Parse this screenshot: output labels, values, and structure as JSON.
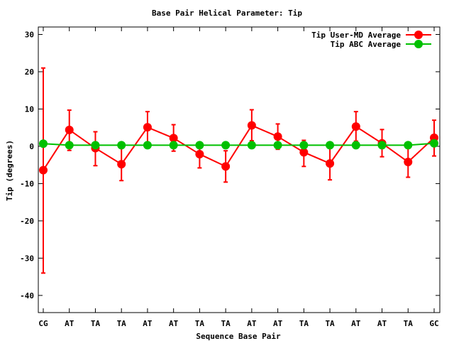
{
  "chart_data": {
    "type": "line",
    "title": "Base Pair Helical Parameter: Tip",
    "xlabel": "Sequence Base Pair",
    "ylabel": "Tip (degrees)",
    "ylim": [
      -44.6,
      32
    ],
    "yticks": [
      30,
      20,
      10,
      0,
      -10,
      -20,
      -30,
      -40
    ],
    "categories": [
      "CG",
      "AT",
      "TA",
      "TA",
      "AT",
      "AT",
      "TA",
      "TA",
      "AT",
      "AT",
      "TA",
      "TA",
      "AT",
      "AT",
      "TA",
      "GC"
    ],
    "legend_position": "top-right",
    "series": [
      {
        "name": "Tip User-MD Average",
        "color": "#ff0000",
        "values": [
          -6.4,
          4.4,
          -0.5,
          -4.8,
          5.1,
          2.2,
          -2.1,
          -5.4,
          5.6,
          2.6,
          -1.6,
          -4.6,
          5.3,
          0.8,
          -4.2,
          2.3
        ],
        "err_high": [
          21.0,
          9.7,
          3.9,
          0.3,
          9.3,
          5.8,
          0.8,
          -1.2,
          9.8,
          6.0,
          1.6,
          0.0,
          9.3,
          4.5,
          0.0,
          7.0
        ],
        "err_low": [
          -34.0,
          -1.1,
          -5.2,
          -9.2,
          1.0,
          -1.3,
          -5.8,
          -9.6,
          1.5,
          -0.8,
          -5.4,
          -9.0,
          1.4,
          -2.8,
          -8.3,
          -2.6
        ]
      },
      {
        "name": "Tip ABC Average",
        "color": "#00c000",
        "values": [
          0.7,
          0.3,
          0.3,
          0.3,
          0.3,
          0.3,
          0.3,
          0.3,
          0.3,
          0.3,
          0.3,
          0.3,
          0.3,
          0.3,
          0.3,
          0.8
        ]
      }
    ]
  }
}
